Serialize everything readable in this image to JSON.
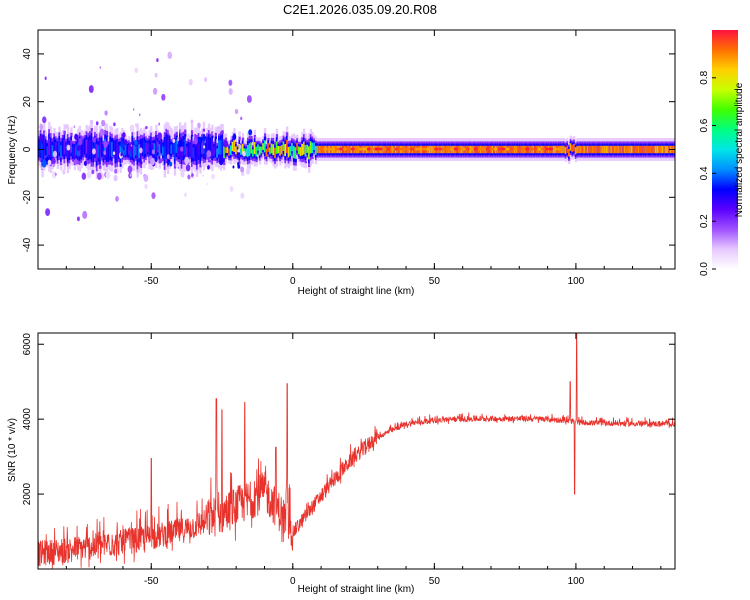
{
  "title": "C2E1.2026.035.09.20.R08",
  "colors": {
    "snr_line": "#e8322c",
    "spectrogram_ridge": "#d0103c",
    "background": "#ffffff"
  },
  "chart_data": [
    {
      "type": "heatmap",
      "name": "spectrogram",
      "xlabel": "Height of straight line (km)",
      "ylabel": "Frequency (Hz)",
      "xlim": [
        -90,
        135
      ],
      "ylim": [
        -50,
        50
      ],
      "x_ticks": [
        -50,
        0,
        50,
        100
      ],
      "y_ticks": [
        -40,
        -20,
        0,
        20,
        40
      ],
      "x_tick_labels": [
        "-50",
        "0",
        "50",
        "100"
      ],
      "y_tick_labels": [
        "-40",
        "-20",
        "0",
        "20",
        "40"
      ],
      "colorbar": {
        "label": "Normalized spectral amplitude",
        "range": [
          0.0,
          1.0
        ],
        "ticks": [
          0.0,
          0.2,
          0.4,
          0.6,
          0.8
        ],
        "tick_labels": [
          "0.0",
          "0.2",
          "0.4",
          "0.6",
          "0.8"
        ],
        "colormap": [
          "#ffffff",
          "#e6c8ff",
          "#a050ff",
          "#5a00ff",
          "#0000ff",
          "#0090ff",
          "#00e6e6",
          "#00ff80",
          "#40ff00",
          "#c8ff00",
          "#ffd000",
          "#ff7000",
          "#ff1040"
        ]
      },
      "description_bands": [
        {
          "x_range": [
            -90,
            -25
          ],
          "band_half_width_hz": 4,
          "peak_amplitude": 0.35,
          "scatter_extent_hz": 45
        },
        {
          "x_range": [
            -25,
            8
          ],
          "band_half_width_hz": 3,
          "peak_amplitude": 0.8
        },
        {
          "x_range": [
            8,
            135
          ],
          "band_half_width_hz": 2.5,
          "peak_amplitude": 0.95
        }
      ]
    },
    {
      "type": "line",
      "name": "snr",
      "xlabel": "Height of straight line (km)",
      "ylabel": "SNR (10 * v/v)",
      "xlim": [
        -90,
        135
      ],
      "ylim": [
        0,
        6300
      ],
      "x_ticks": [
        -50,
        0,
        50,
        100
      ],
      "y_ticks": [
        2000,
        4000,
        6000
      ],
      "x_tick_labels": [
        "-50",
        "0",
        "50",
        "100"
      ],
      "y_tick_labels": [
        "2000",
        "4000",
        "6000"
      ],
      "trend": {
        "x": [
          -90,
          -60,
          -40,
          -25,
          -10,
          0,
          10,
          20,
          30,
          40,
          50,
          60,
          70,
          80,
          90,
          95,
          100,
          105,
          120,
          135
        ],
        "y": [
          300,
          600,
          900,
          1300,
          1900,
          900,
          1900,
          2800,
          3500,
          3850,
          3950,
          3980,
          3990,
          3990,
          3980,
          3950,
          3900,
          3880,
          3860,
          3850
        ]
      },
      "noise_amplitude": [
        {
          "x": [
            -90,
            -30
          ],
          "amplitude": 700
        },
        {
          "x": [
            -30,
            0
          ],
          "amplitude": 1100
        },
        {
          "x": [
            0,
            30
          ],
          "amplitude": 400
        },
        {
          "x": [
            30,
            135
          ],
          "amplitude": 150
        }
      ],
      "spikes": [
        {
          "x": -50,
          "y": 2950
        },
        {
          "x": -27,
          "y": 4550
        },
        {
          "x": -25,
          "y": 4250
        },
        {
          "x": -17,
          "y": 4450
        },
        {
          "x": -6,
          "y": 3250
        },
        {
          "x": -2,
          "y": 4950
        },
        {
          "x": 98,
          "y": 5000
        },
        {
          "x": 99.5,
          "y": 2000
        },
        {
          "x": 100.3,
          "y": 6300
        }
      ]
    }
  ]
}
